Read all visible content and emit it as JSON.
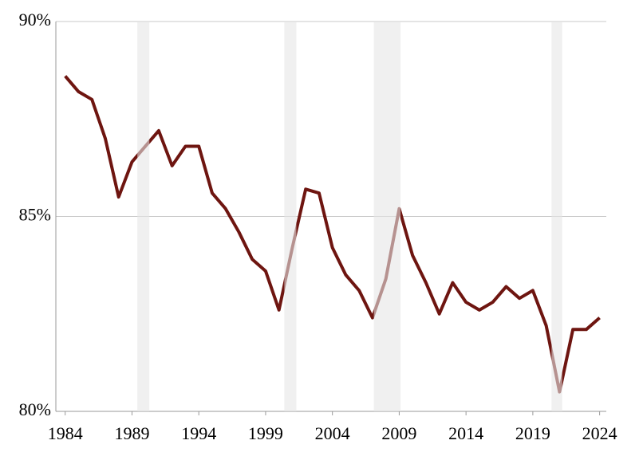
{
  "chart_data": {
    "type": "line",
    "x": [
      1984,
      1985,
      1986,
      1987,
      1988,
      1989,
      1990,
      1991,
      1992,
      1993,
      1994,
      1995,
      1996,
      1997,
      1998,
      1999,
      2000,
      2001,
      2002,
      2003,
      2004,
      2005,
      2006,
      2007,
      2008,
      2009,
      2010,
      2011,
      2012,
      2013,
      2014,
      2015,
      2016,
      2017,
      2018,
      2019,
      2020,
      2021,
      2022,
      2023,
      2024
    ],
    "values": [
      88.6,
      88.2,
      88.0,
      87.0,
      85.5,
      86.4,
      86.8,
      87.2,
      86.3,
      86.8,
      86.8,
      85.6,
      85.2,
      84.6,
      83.9,
      83.6,
      82.6,
      84.2,
      85.7,
      85.6,
      84.2,
      83.5,
      83.1,
      82.4,
      83.4,
      85.2,
      84.0,
      83.3,
      82.5,
      83.3,
      82.8,
      82.6,
      82.8,
      83.2,
      82.9,
      83.1,
      82.2,
      80.5,
      82.1,
      82.1,
      82.4
    ],
    "color": "#6e1510",
    "recessions": [
      [
        1989.4,
        1990.3
      ],
      [
        2000.4,
        2001.3
      ],
      [
        2007.1,
        2009.1
      ],
      [
        2020.4,
        2021.2
      ]
    ],
    "recession_color": "#e6e6e6",
    "xlim": [
      1983.3,
      2024.5
    ],
    "xticks": [
      1984,
      1989,
      1994,
      1999,
      2004,
      2009,
      2014,
      2019,
      2024
    ],
    "ylim": [
      80,
      90
    ],
    "yticks": [
      {
        "value": 80,
        "label": "80%"
      },
      {
        "value": 85,
        "label": "85%"
      },
      {
        "value": 90,
        "label": "90%"
      }
    ],
    "grid": true
  }
}
